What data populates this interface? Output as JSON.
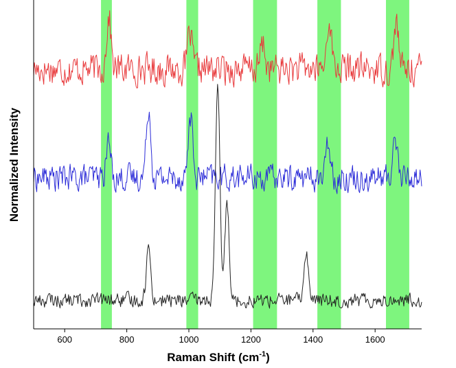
{
  "chart_data": {
    "type": "line",
    "title": "",
    "xlabel": {
      "base": "Raman Shift (cm",
      "sup": "-1",
      "close": ")"
    },
    "ylabel": "Normalized Intensity",
    "xlim": [
      500,
      1750
    ],
    "ylim": [
      0,
      1
    ],
    "x_ticks": [
      "600",
      "800",
      "1000",
      "1200",
      "1400",
      "1600"
    ],
    "y_ticks": [],
    "grid": false,
    "legend": "none",
    "highlight_color": "#7ef57e",
    "highlight_bands": [
      [
        717,
        752
      ],
      [
        992,
        1030
      ],
      [
        1207,
        1284
      ],
      [
        1414,
        1490
      ],
      [
        1635,
        1710
      ]
    ],
    "series": [
      {
        "color": "#e8383a",
        "baseline": 0.79,
        "noise": 0.065,
        "peaks": [
          {
            "x": 742,
            "height": 0.16
          },
          {
            "x": 1003,
            "height": 0.11
          },
          {
            "x": 1238,
            "height": 0.08
          },
          {
            "x": 1452,
            "height": 0.16
          },
          {
            "x": 1668,
            "height": 0.15
          }
        ]
      },
      {
        "color": "#2b2bd8",
        "baseline": 0.46,
        "noise": 0.055,
        "peaks": [
          {
            "x": 741,
            "height": 0.11
          },
          {
            "x": 870,
            "height": 0.22
          },
          {
            "x": 1005,
            "height": 0.19
          },
          {
            "x": 1450,
            "height": 0.11
          },
          {
            "x": 1665,
            "height": 0.13
          }
        ]
      },
      {
        "color": "#222222",
        "baseline": 0.087,
        "noise": 0.03,
        "peaks": [
          {
            "x": 870,
            "height": 0.16
          },
          {
            "x": 1093,
            "height": 0.65
          },
          {
            "x": 1123,
            "height": 0.3
          },
          {
            "x": 1378,
            "height": 0.15
          }
        ]
      }
    ]
  }
}
